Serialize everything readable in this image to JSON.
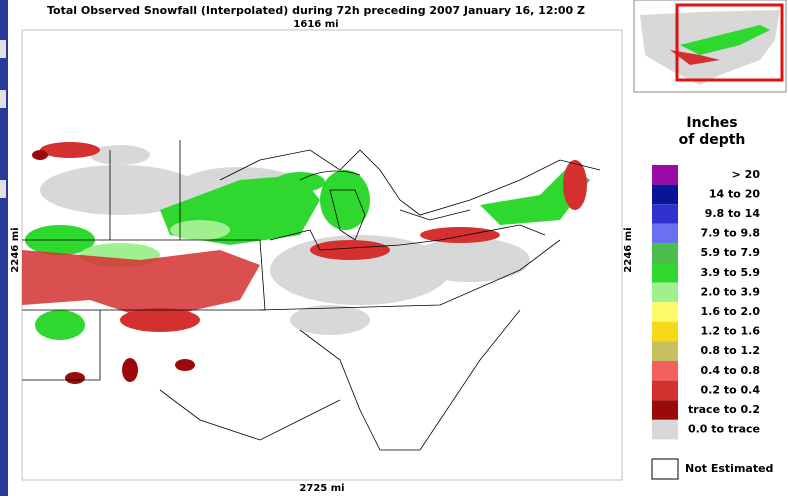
{
  "header": {
    "title": "Total Observed Snowfall (Interpolated) during 72h preceding 2007 January 16, 12:00 Z"
  },
  "scale": {
    "top": "1616 mi",
    "left": "2246 mi",
    "right": "2246 mi",
    "bottom": "2725 mi"
  },
  "legend": {
    "title_lines": [
      "Inches",
      "of depth"
    ],
    "items": [
      {
        "label": ">  20",
        "color": "#9c0aa6"
      },
      {
        "label": "14 to  20",
        "color": "#0a1496"
      },
      {
        "label": "9.8 to  14",
        "color": "#3030d0"
      },
      {
        "label": "7.9 to  9.8",
        "color": "#6a70f0"
      },
      {
        "label": "5.9 to  7.9",
        "color": "#4cbc4c"
      },
      {
        "label": "3.9 to  5.9",
        "color": "#2ed82e"
      },
      {
        "label": "2.0 to  3.9",
        "color": "#a0f090"
      },
      {
        "label": "1.6 to  2.0",
        "color": "#fcfc6a"
      },
      {
        "label": "1.2 to  1.6",
        "color": "#f8d818"
      },
      {
        "label": "0.8 to  1.2",
        "color": "#c8c060"
      },
      {
        "label": "0.4 to  0.8",
        "color": "#f46060"
      },
      {
        "label": "0.2 to  0.4",
        "color": "#d43030"
      },
      {
        "label": "trace to  0.2",
        "color": "#9a0a0a"
      },
      {
        "label": "0.0 to trace",
        "color": "#d8d8d8"
      }
    ],
    "not_estimated": "Not Estimated"
  }
}
